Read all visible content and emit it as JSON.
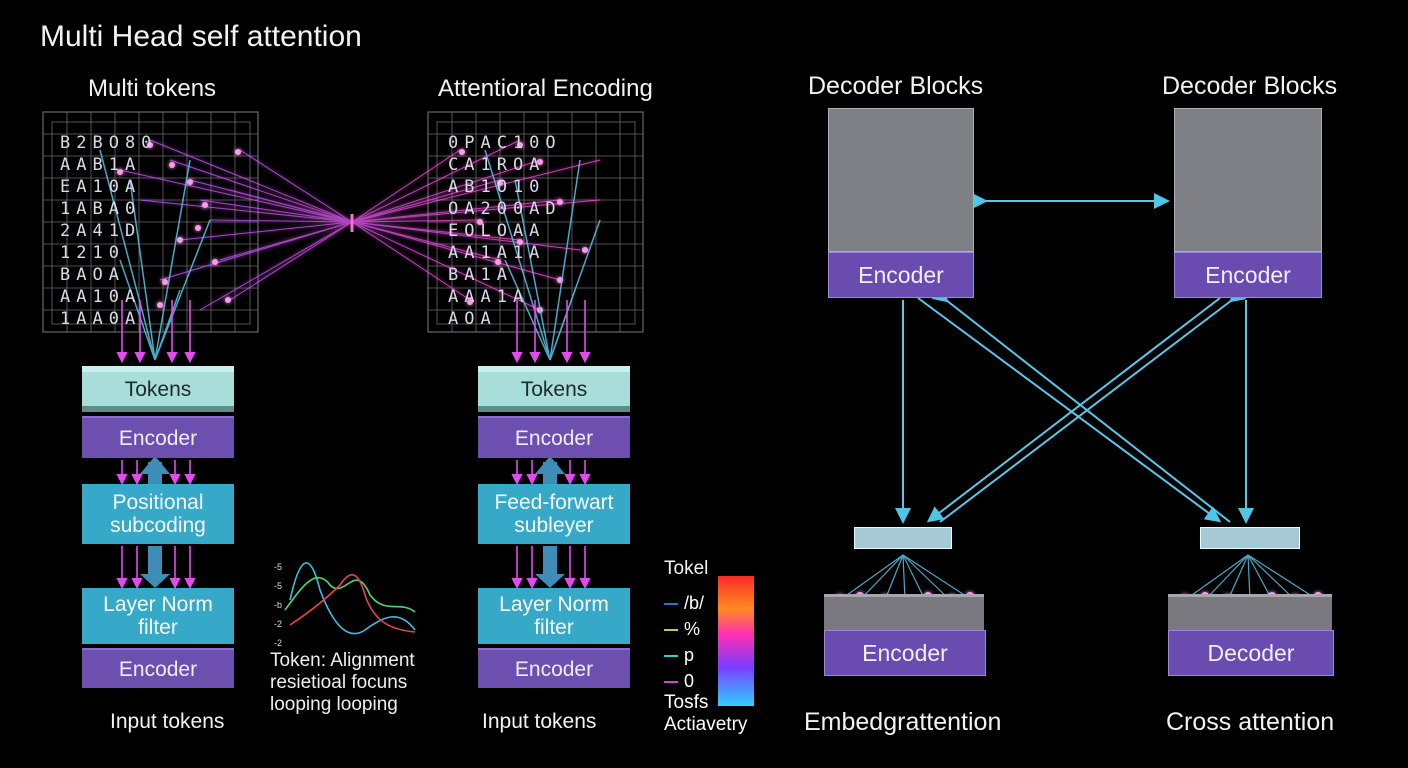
{
  "title": "Multi Head self attention",
  "panel1": {
    "heading": "Multi tokens",
    "grid_text": [
      "B2BO80",
      "AAB1A",
      "EA10A",
      "1ABA0",
      "2A41D",
      "1210",
      "BAOA",
      "AA10A",
      "1AA0A"
    ],
    "blocks": [
      "Tokens",
      "Encoder",
      "Positional subcoding",
      "Layer Norm filter",
      "Encoder"
    ],
    "footer": "Input tokens"
  },
  "panel2": {
    "heading": "Attentioral Encoding",
    "grid_text": [
      "0PAC10O",
      "CA1ROA",
      "AB1O10",
      "OA200AD",
      "EOLOAA",
      "AA1A1A",
      "BA1A",
      "AAA1A",
      "AOA"
    ],
    "blocks": [
      "Tokens",
      "Encoder",
      "Feed-forwart subleyer",
      "Layer Norm filter",
      "Encoder"
    ],
    "footer": "Input tokens"
  },
  "mini_chart": {
    "tick_labels": [
      "-5",
      "-5",
      "-b",
      "-2",
      "-2"
    ],
    "caption": [
      "Token: Alignment",
      "resietioal focuns",
      "looping looping"
    ]
  },
  "legend": {
    "title": "Tokel",
    "entries": [
      {
        "label": "/b/",
        "color": "#2f6fd6"
      },
      {
        "label": "%",
        "color": "#d4c24a"
      },
      {
        "label": "p",
        "color": "#3fc9d6"
      },
      {
        "label": "0",
        "color": "#d243d6"
      }
    ],
    "footer": [
      "Tosfs",
      "Actiavetry"
    ]
  },
  "right": {
    "decoder_left_heading": "Decoder Blocks",
    "decoder_right_heading": "Decoder Blocks",
    "decoder_left_label": "Encoder",
    "decoder_right_label": "Encoder",
    "bottom_left_label": "Encoder",
    "bottom_right_label": "Decoder",
    "caption_left": "Embedgrattention",
    "caption_right": "Cross attention"
  },
  "colors": {
    "cyan": "#4fc6e6",
    "magenta": "#e24bf0",
    "purple": "#6c4fae"
  }
}
